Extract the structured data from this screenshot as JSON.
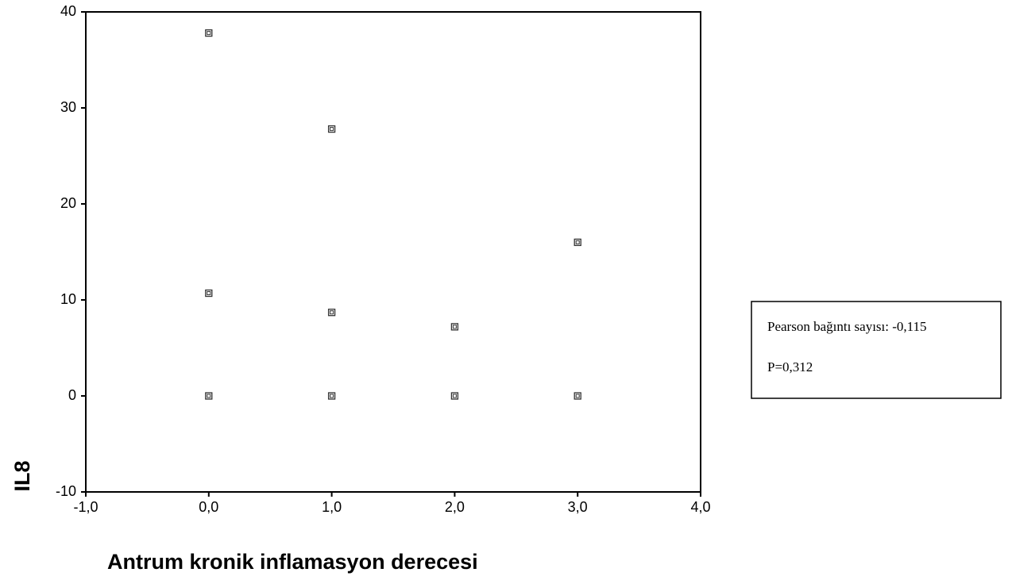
{
  "chart_data": {
    "type": "scatter",
    "x_label": "Antrum kronik inflamasyon derecesi",
    "y_label": "IL8",
    "x": [
      0,
      0,
      0,
      1,
      1,
      1,
      2,
      2,
      3,
      3
    ],
    "values": [
      37.8,
      10.7,
      0,
      27.8,
      8.7,
      0,
      7.2,
      0,
      16,
      0
    ],
    "color": "#333333",
    "xlim": [
      -1,
      4
    ],
    "xticks": [
      {
        "value": -1,
        "label": "-1,0"
      },
      {
        "value": 0,
        "label": "0,0"
      },
      {
        "value": 1,
        "label": "1,0"
      },
      {
        "value": 2,
        "label": "2,0"
      },
      {
        "value": 3,
        "label": "3,0"
      },
      {
        "value": 4,
        "label": "4,0"
      }
    ],
    "ylim": [
      -10,
      40
    ],
    "yticks": [
      -10,
      0,
      10,
      20,
      30,
      40
    ],
    "annotations": [
      "Pearson bağıntı sayısı: -0,115",
      "P=0,312"
    ]
  }
}
